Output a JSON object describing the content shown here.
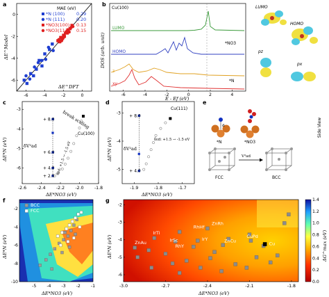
{
  "panels": {
    "a": {
      "label": "a",
      "xlabel": "ΔE^DFT",
      "ylabel": "ΔE^Model",
      "legend_title": "MAE (eV)",
      "legend": [
        {
          "name": "*N (100)",
          "mae": "0.29",
          "color": "#1f3fd1",
          "marker": "square"
        },
        {
          "name": "*N (111)",
          "mae": "0.20",
          "color": "#1f3fd1",
          "marker": "circle"
        },
        {
          "name": "*NO3(100)",
          "mae": "0.13",
          "color": "#e01f1f",
          "marker": "square"
        },
        {
          "name": "*NO3(111)",
          "mae": "0.15",
          "color": "#e01f1f",
          "marker": "circle"
        }
      ],
      "xticks": [
        "-6",
        "-4",
        "-2",
        "0"
      ],
      "yticks": [
        "-6",
        "-4",
        "-2",
        "0"
      ]
    },
    "b": {
      "label": "b",
      "title": "Cu(100)",
      "xlabel": "E - Ef (eV)",
      "ylabel": "DOS (arb. unit)",
      "xticks": [
        "-6",
        "-4",
        "-2",
        "0",
        "2",
        "4"
      ],
      "curve_labels": {
        "lumo": "LUMO",
        "homo": "HOMO",
        "no3": "*NO3",
        "z": "z",
        "xy": "xy",
        "n": "*N"
      },
      "orbital_labels": {
        "lumo": "LUMO",
        "homo": "HOMO",
        "pz": "pz",
        "px": "px"
      }
    },
    "c": {
      "label": "c",
      "xlabel": "ΔE*NO3 (eV)",
      "ylabel": "ΔE*N (eV)",
      "xticks": [
        "-2.6",
        "-2.4",
        "-2.2",
        "-2.0",
        "-1.8"
      ],
      "yticks": [
        "-6",
        "-5",
        "-4",
        "-3"
      ],
      "annot_break": "break scaling",
      "annot_surface": "Cu(100)",
      "annot_delta": "δV²ad",
      "annot_fit": "δεd: +1.5 → -1.5 eV",
      "markers": [
        "+ 8.0",
        "+ 6.0",
        "+ 4.0",
        "+ 2.0"
      ]
    },
    "d": {
      "label": "d",
      "xlabel": "ΔE*NO3 (eV)",
      "ylabel": "ΔE*N (eV)",
      "xticks": [
        "-1.9",
        "-1.8",
        "-1.7"
      ],
      "yticks": [
        "-5",
        "-4",
        "-3"
      ],
      "annot_surface": "Cu(111)",
      "annot_delta": "δV²ad",
      "annot_fit": "δεd: +1.5 → -1.5 eV",
      "markers": [
        "+ 8.0",
        "+ 4.0"
      ]
    },
    "e": {
      "label": "e",
      "side_view": "Side View",
      "n_label": "*N",
      "no3_label": "*NO3",
      "fcc": "FCC",
      "bcc": "BCC",
      "arrow": "V²ad",
      "d_label": "d"
    },
    "f": {
      "label": "f",
      "legend": [
        {
          "name": "BCC",
          "color": "#9a9a9a"
        },
        {
          "name": "FCC",
          "color": "#ffffff"
        }
      ],
      "xlabel": "ΔE*NO3 (eV)",
      "ylabel": "ΔE*N (eV)",
      "xticks": [
        "-5",
        "-4",
        "-3",
        "-2",
        "-1"
      ],
      "yticks": [
        "-2",
        "-4",
        "-6",
        "-8",
        "-10"
      ]
    },
    "g": {
      "label": "g",
      "xlabel": "ΔE*NO3 (eV)",
      "ylabel": "ΔE*N (eV)",
      "xticks": [
        "-3.0",
        "-2.7",
        "-2.4",
        "-2.1",
        "-1.8"
      ],
      "yticks": [
        "-2",
        "-3",
        "-4",
        "-5",
        "-6"
      ],
      "colorbar_label": "ΔG^max (eV)",
      "colorbar_ticks": [
        "1.4",
        "1.2",
        "1.0",
        "0.8",
        "0.6",
        "0.4",
        "0.2",
        "0.0"
      ],
      "alloy_labels": [
        "IrTi",
        "RhHf",
        "ZnRh",
        "ZnAu",
        "IrSc",
        "IrY",
        "ZnCu",
        "CuPd",
        "RhY",
        "Cu"
      ]
    }
  },
  "chart_data": [
    {
      "panel": "a",
      "type": "scatter",
      "title": "",
      "xlabel": "ΔE^DFT",
      "ylabel": "ΔE^Model",
      "xlim": [
        -7,
        1
      ],
      "ylim": [
        -7,
        1
      ],
      "series": [
        {
          "name": "*N (100)",
          "points": [
            [
              -6.2,
              -6.0
            ],
            [
              -5.9,
              -6.3
            ],
            [
              -5.5,
              -5.4
            ],
            [
              -5.2,
              -5.6
            ],
            [
              -4.9,
              -5.0
            ],
            [
              -4.6,
              -4.2
            ],
            [
              -4.3,
              -4.7
            ],
            [
              -4.0,
              -3.6
            ],
            [
              -3.5,
              -3.2
            ],
            [
              -3.2,
              -2.7
            ]
          ]
        },
        {
          "name": "*N (111)",
          "points": [
            [
              -6.0,
              -5.6
            ],
            [
              -5.6,
              -5.9
            ],
            [
              -5.1,
              -4.8
            ],
            [
              -4.7,
              -4.4
            ],
            [
              -4.3,
              -4.2
            ],
            [
              -3.9,
              -4.1
            ],
            [
              -3.6,
              -3.0
            ],
            [
              -3.1,
              -3.3
            ]
          ]
        },
        {
          "name": "*NO3(100)",
          "points": [
            [
              -2.6,
              -2.4
            ],
            [
              -2.4,
              -2.5
            ],
            [
              -2.3,
              -2.1
            ],
            [
              -2.1,
              -2.2
            ],
            [
              -2.0,
              -1.9
            ],
            [
              -1.9,
              -2.0
            ],
            [
              -1.7,
              -1.6
            ],
            [
              -1.6,
              -1.7
            ],
            [
              -1.5,
              -1.4
            ],
            [
              -1.3,
              -1.3
            ],
            [
              -1.1,
              -1.0
            ]
          ]
        },
        {
          "name": "*NO3(111)",
          "points": [
            [
              -2.5,
              -2.3
            ],
            [
              -2.2,
              -2.4
            ],
            [
              -2.0,
              -2.1
            ],
            [
              -1.8,
              -1.7
            ],
            [
              -1.6,
              -1.5
            ],
            [
              -1.4,
              -1.6
            ],
            [
              -1.2,
              -1.2
            ],
            [
              -1.0,
              -1.1
            ]
          ]
        }
      ]
    },
    {
      "panel": "c",
      "type": "scatter",
      "title": "",
      "xlabel": "ΔE*NO3 (eV)",
      "ylabel": "ΔE*N (eV)",
      "xlim": [
        -2.6,
        -1.8
      ],
      "ylim": [
        -6.8,
        -2.6
      ],
      "series": [
        {
          "name": "",
          "points": [
            [
              -2.28,
              -3.5
            ],
            [
              -2.28,
              -4.2
            ],
            [
              -2.28,
              -5.2
            ],
            [
              -2.28,
              -6.0
            ],
            [
              -2.28,
              -6.4
            ]
          ]
        },
        {
          "name": "",
          "points": [
            [
              -2.26,
              -6.4
            ],
            [
              -2.22,
              -6.25
            ],
            [
              -2.18,
              -6.05
            ],
            [
              -2.15,
              -5.8
            ],
            [
              -2.12,
              -5.5
            ],
            [
              -2.09,
              -5.15
            ],
            [
              -2.06,
              -4.75
            ],
            [
              -2.03,
              -4.35
            ],
            [
              -2.0,
              -3.95
            ],
            [
              -1.98,
              -3.6
            ],
            [
              -1.96,
              -3.35
            ]
          ]
        }
      ]
    },
    {
      "panel": "d",
      "type": "scatter",
      "title": "",
      "xlabel": "ΔE*NO3 (eV)",
      "ylabel": "ΔE*N (eV)",
      "xlim": [
        -1.95,
        -1.65
      ],
      "ylim": [
        -5.5,
        -2.6
      ],
      "series": [
        {
          "name": "",
          "points": [
            [
              -1.88,
              -3.1
            ],
            [
              -1.88,
              -4.45
            ],
            [
              -1.88,
              -5.05
            ]
          ]
        },
        {
          "name": "",
          "points": [
            [
              -1.86,
              -5.0
            ],
            [
              -1.85,
              -4.8
            ],
            [
              -1.84,
              -4.55
            ],
            [
              -1.83,
              -4.3
            ],
            [
              -1.82,
              -4.05
            ],
            [
              -1.81,
              -3.8
            ],
            [
              -1.79,
              -3.55
            ],
            [
              -1.77,
              -3.35
            ],
            [
              -1.75,
              -3.2
            ]
          ]
        }
      ]
    },
    {
      "panel": "f",
      "type": "scatter",
      "title": "",
      "xlabel": "ΔE*NO3 (eV)",
      "ylabel": "ΔE*N (eV)",
      "xlim": [
        -6,
        -1
      ],
      "ylim": [
        -10,
        -1
      ],
      "series": [
        {
          "name": "BCC",
          "points": [
            [
              -4.6,
              -8.2
            ],
            [
              -4.2,
              -7.6
            ],
            [
              -3.9,
              -7.0
            ],
            [
              -3.6,
              -6.4
            ],
            [
              -3.3,
              -5.8
            ],
            [
              -3.0,
              -5.4
            ],
            [
              -2.7,
              -5.0
            ],
            [
              -2.5,
              -4.4
            ],
            [
              -2.3,
              -3.8
            ],
            [
              -2.1,
              -3.2
            ],
            [
              -2.6,
              -6.2
            ],
            [
              -3.1,
              -6.8
            ],
            [
              -3.8,
              -8.6
            ],
            [
              -2.9,
              -4.6
            ],
            [
              -2.2,
              -4.8
            ]
          ]
        },
        {
          "name": "FCC",
          "points": [
            [
              -3.4,
              -5.0
            ],
            [
              -3.1,
              -4.6
            ],
            [
              -2.8,
              -4.2
            ],
            [
              -2.6,
              -3.8
            ],
            [
              -2.4,
              -3.4
            ],
            [
              -2.2,
              -3.0
            ],
            [
              -2.0,
              -2.6
            ],
            [
              -1.8,
              -2.4
            ],
            [
              -2.7,
              -5.6
            ],
            [
              -3.2,
              -6.0
            ],
            [
              -2.3,
              -5.2
            ],
            [
              -1.9,
              -4.0
            ]
          ]
        }
      ]
    },
    {
      "panel": "g",
      "type": "scatter",
      "title": "",
      "xlabel": "ΔE*NO3 (eV)",
      "ylabel": "ΔE*N (eV)",
      "xlim": [
        -3.0,
        -1.75
      ],
      "ylim": [
        -6.4,
        -1.7
      ],
      "series": [
        {
          "name": "",
          "points": [
            [
              -2.78,
              -3.9
            ],
            [
              -2.6,
              -3.55
            ],
            [
              -2.4,
              -3.35
            ],
            [
              -2.92,
              -4.45
            ],
            [
              -2.63,
              -4.1
            ],
            [
              -2.47,
              -4.05
            ],
            [
              -2.29,
              -4.3
            ],
            [
              -2.09,
              -4.05
            ],
            [
              -2.5,
              -4.4
            ],
            [
              -2.0,
              -4.35
            ],
            [
              -2.9,
              -5.0
            ],
            [
              -2.7,
              -4.8
            ],
            [
              -2.55,
              -5.2
            ],
            [
              -2.38,
              -5.05
            ],
            [
              -2.2,
              -5.4
            ],
            [
              -2.05,
              -5.0
            ],
            [
              -1.9,
              -4.9
            ],
            [
              -2.8,
              -5.6
            ],
            [
              -2.6,
              -5.9
            ],
            [
              -2.45,
              -5.6
            ],
            [
              -2.3,
              -5.8
            ],
            [
              -2.12,
              -5.6
            ],
            [
              -1.95,
              -5.3
            ],
            [
              -1.85,
              -3.05
            ],
            [
              -1.82,
              -2.55
            ],
            [
              -2.1,
              -3.7
            ],
            [
              -2.35,
              -4.7
            ],
            [
              -2.65,
              -5.35
            ],
            [
              -2.82,
              -4.6
            ],
            [
              -2.25,
              -3.95
            ]
          ]
        },
        {
          "name": "Cu",
          "points": [
            [
              -1.99,
              -4.25
            ]
          ]
        }
      ],
      "colorbar": {
        "label": "ΔG^max (eV)",
        "range": [
          0.0,
          1.4
        ]
      }
    }
  ]
}
